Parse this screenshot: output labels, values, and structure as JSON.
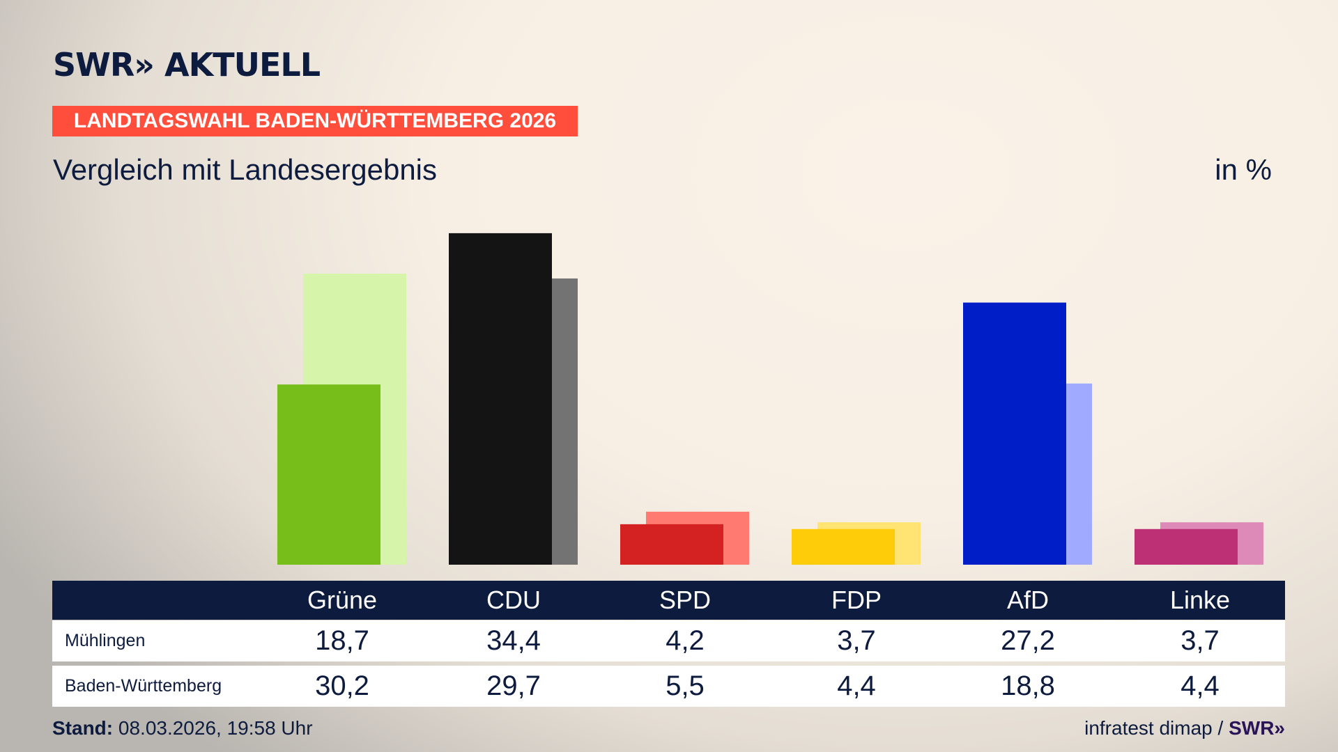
{
  "header": {
    "logo": "SWR» AKTUELL",
    "banner": "LANDTAGSWAHL BADEN-WÜRTTEMBERG 2026",
    "subtitle": "Vergleich mit Landesergebnis",
    "unit": "in %"
  },
  "colors": {
    "navy": "#0d1b3e",
    "banner": "#ff4e3b"
  },
  "chart_data": {
    "type": "bar",
    "categories": [
      "Grüne",
      "CDU",
      "SPD",
      "FDP",
      "AfD",
      "Linke"
    ],
    "series": [
      {
        "name": "Mühlingen",
        "values": [
          18.7,
          34.4,
          4.2,
          3.7,
          27.2,
          3.7
        ],
        "colors": [
          "#78be1a",
          "#141414",
          "#d42222",
          "#ffcc0a",
          "#001ec8",
          "#be3075"
        ]
      },
      {
        "name": "Baden-Württemberg",
        "values": [
          30.2,
          29.7,
          5.5,
          4.4,
          18.8,
          4.4
        ],
        "colors": [
          "#d6f5ab",
          "#737373",
          "#ff7a70",
          "#ffe373",
          "#a0abff",
          "#dd8ab8"
        ]
      }
    ],
    "ylabel": "in %",
    "ylim": [
      0,
      35
    ],
    "grid": false
  },
  "table": {
    "headers": [
      "Grüne",
      "CDU",
      "SPD",
      "FDP",
      "AfD",
      "Linke"
    ],
    "rows": [
      {
        "label": "Mühlingen",
        "values": [
          "18,7",
          "34,4",
          "4,2",
          "3,7",
          "27,2",
          "3,7"
        ]
      },
      {
        "label": "Baden-Württemberg",
        "values": [
          "30,2",
          "29,7",
          "5,5",
          "4,4",
          "18,8",
          "4,4"
        ]
      }
    ]
  },
  "footer": {
    "stand_label": "Stand:",
    "stand_value": " 08.03.2026, 19:58 Uhr",
    "source": "infratest dimap / ",
    "source_logo": "SWR»"
  }
}
